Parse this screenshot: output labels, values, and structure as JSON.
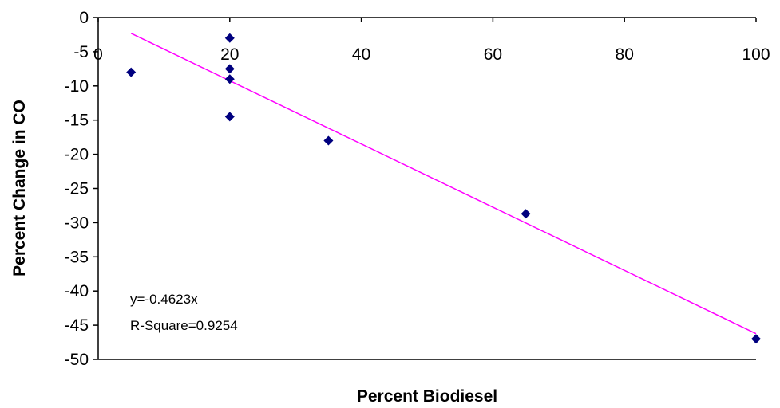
{
  "chart_data": {
    "type": "scatter",
    "xlabel": "Percent Biodiesel",
    "ylabel": "Percent Change in CO",
    "xlim": [
      0,
      100
    ],
    "ylim": [
      -50,
      0
    ],
    "x_ticks": [
      0,
      20,
      40,
      60,
      80,
      100
    ],
    "y_ticks": [
      0,
      -5,
      -10,
      -15,
      -20,
      -25,
      -30,
      -35,
      -40,
      -45,
      -50
    ],
    "grid": false,
    "series": [
      {
        "marker": "diamond",
        "color": "#00007F",
        "points": [
          {
            "x": 5,
            "y": -8
          },
          {
            "x": 20,
            "y": -3
          },
          {
            "x": 20,
            "y": -7.5
          },
          {
            "x": 20,
            "y": -9
          },
          {
            "x": 20,
            "y": -14.5
          },
          {
            "x": 35,
            "y": -18
          },
          {
            "x": 65,
            "y": -28.7
          },
          {
            "x": 100,
            "y": -47
          }
        ]
      }
    ],
    "trendline": {
      "color": "#FF00FF",
      "slope": -0.4623,
      "intercept": 0,
      "x_start": 5,
      "x_end": 100
    },
    "annotations": [
      "y=-0.4623x",
      "R-Square=0.9254"
    ]
  }
}
